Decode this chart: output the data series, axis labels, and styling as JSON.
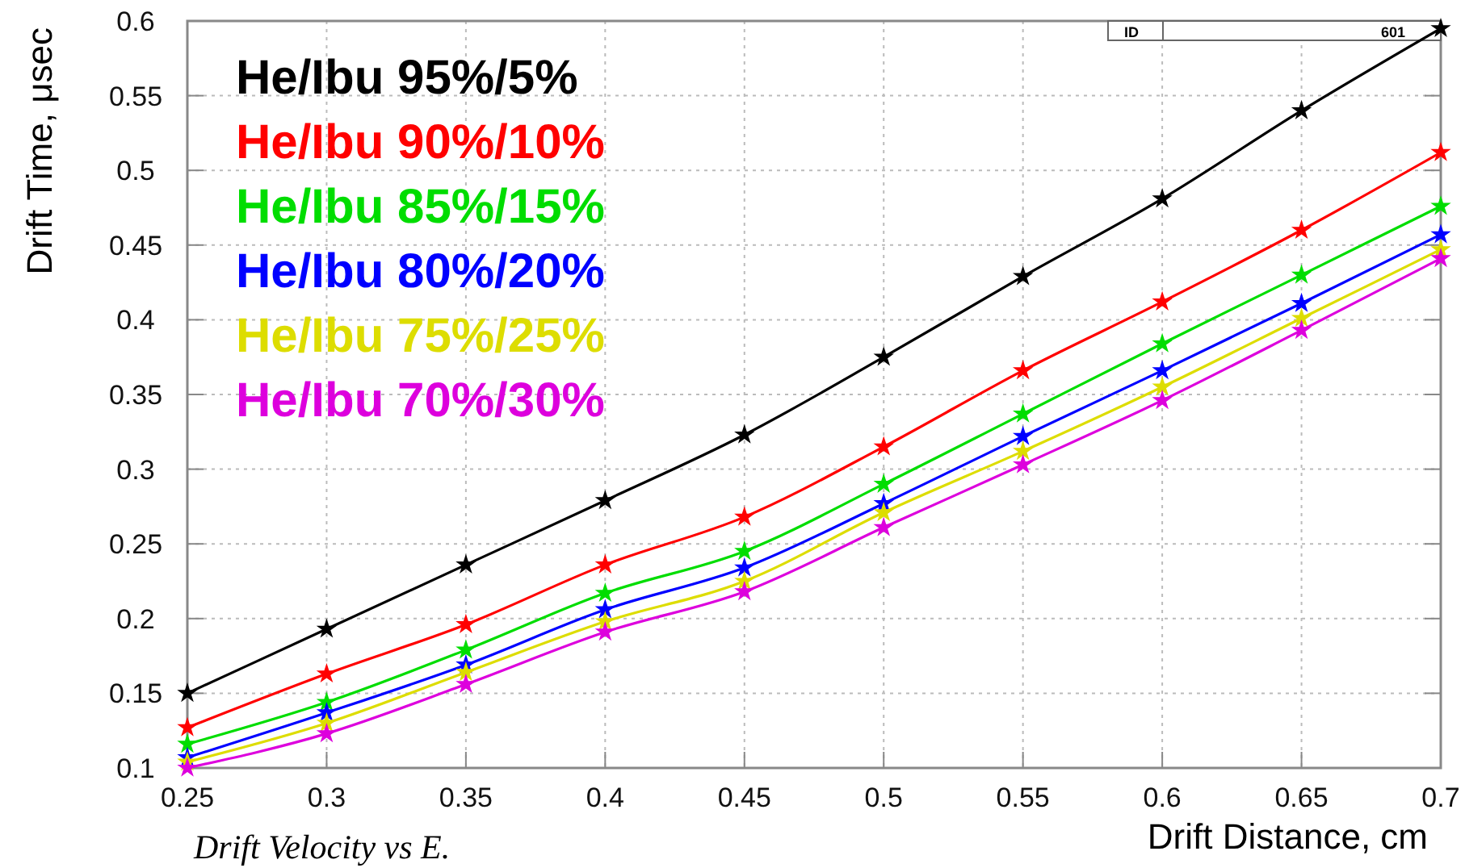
{
  "chart_data": {
    "type": "line",
    "xlabel": "Drift Distance, cm",
    "ylabel": "Drift Time, μsec",
    "annotations": [
      "Drift Velocity vs E.",
      "ID",
      "601"
    ],
    "x": [
      0.25,
      0.3,
      0.35,
      0.4,
      0.45,
      0.5,
      0.55,
      0.6,
      0.65,
      0.7
    ],
    "series": [
      {
        "name": "He/Ibu 95%/5%",
        "color": "#000000",
        "values": [
          0.15,
          0.193,
          0.236,
          0.279,
          0.323,
          0.375,
          0.429,
          0.481,
          0.54,
          0.595
        ]
      },
      {
        "name": "He/Ibu 90%/10%",
        "color": "#ff0000",
        "values": [
          0.127,
          0.163,
          0.196,
          0.236,
          0.268,
          0.315,
          0.366,
          0.412,
          0.46,
          0.512
        ]
      },
      {
        "name": "He/Ibu 85%/15%",
        "color": "#00dd00",
        "values": [
          0.116,
          0.144,
          0.179,
          0.217,
          0.245,
          0.29,
          0.337,
          0.384,
          0.43,
          0.476
        ]
      },
      {
        "name": "He/Ibu 80%/20%",
        "color": "#0000ff",
        "values": [
          0.107,
          0.137,
          0.169,
          0.206,
          0.234,
          0.277,
          0.322,
          0.366,
          0.411,
          0.457
        ]
      },
      {
        "name": "He/Ibu 75%/25%",
        "color": "#dddd00",
        "values": [
          0.104,
          0.13,
          0.164,
          0.198,
          0.225,
          0.271,
          0.312,
          0.355,
          0.401,
          0.447
        ]
      },
      {
        "name": "He/Ibu 70%/30%",
        "color": "#dd00dd",
        "values": [
          0.1,
          0.123,
          0.156,
          0.191,
          0.218,
          0.261,
          0.303,
          0.346,
          0.393,
          0.441
        ]
      }
    ],
    "xlim": [
      0.25,
      0.7
    ],
    "xticks": [
      0.25,
      0.3,
      0.35,
      0.4,
      0.45,
      0.5,
      0.55,
      0.6,
      0.65,
      0.7
    ],
    "ylim": [
      0.1,
      0.6
    ],
    "yticks": [
      0.1,
      0.15,
      0.2,
      0.25,
      0.3,
      0.35,
      0.4,
      0.45,
      0.5,
      0.55,
      0.6
    ],
    "grid": true,
    "legend": "top left",
    "marker": "star",
    "line_style": "solid"
  }
}
